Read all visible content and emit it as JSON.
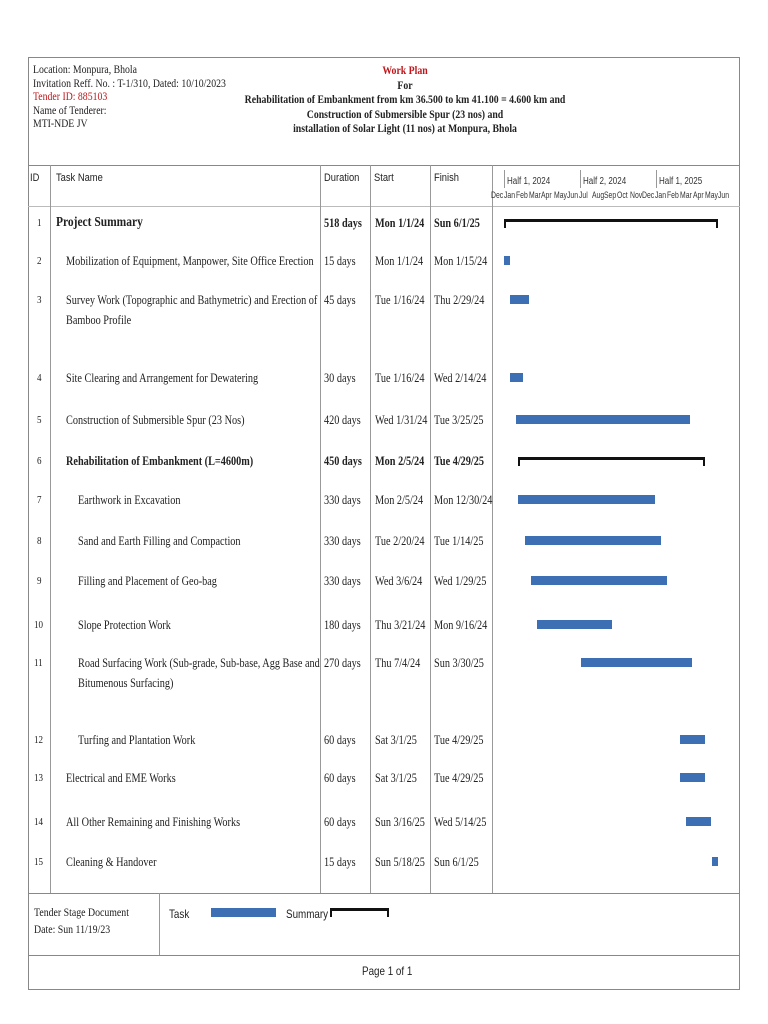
{
  "header": {
    "location": "Location: Monpura, Bhola",
    "invitation": "Invitation Reff. No. : T-1/310, Dated: 10/10/2023",
    "tender_id": "Tender ID: 885103",
    "tenderer_label": "Name of Tenderer:",
    "tenderer": "MTI-NDE JV",
    "title": "Work Plan",
    "for": "For",
    "desc1": "Rehabilitation of Embankment from km 36.500 to km 41.100 = 4.600 km and",
    "desc2": "Construction of Submersible Spur (23 nos) and",
    "desc3": "installation of Solar Light (11 nos) at Monpura, Bhola",
    "title_color": "#c0161b"
  },
  "columns": {
    "id": "ID",
    "task": "Task Name",
    "duration": "Duration",
    "start": "Start",
    "finish": "Finish"
  },
  "timescale": {
    "halves": [
      "Half 1, 2024",
      "Half 2, 2024",
      "Half 1, 2025"
    ],
    "months": [
      "Dec",
      "Jan",
      "Feb",
      "Mar",
      "Apr",
      "May",
      "Jun",
      "Jul",
      "Aug",
      "Sep",
      "Oct",
      "Nov",
      "Dec",
      "Jan",
      "Feb",
      "Mar",
      "Apr",
      "May",
      "Jun"
    ]
  },
  "tasks": [
    {
      "id": "1",
      "name": "Project Summary",
      "duration": "518 days",
      "start": "Mon 1/1/24",
      "finish": "Sun 6/1/25",
      "summary": true,
      "level": 0,
      "s": "2024-01-01",
      "f": "2025-06-01"
    },
    {
      "id": "2",
      "name": "Mobilization of Equipment, Manpower, Site Office Erection",
      "duration": "15 days",
      "start": "Mon 1/1/24",
      "finish": "Mon 1/15/24",
      "level": 1,
      "s": "2024-01-01",
      "f": "2024-01-15"
    },
    {
      "id": "3",
      "name": "Survey Work (Topographic and Bathymetric) and Erection of",
      "name2": "Bamboo Profile",
      "duration": "45 days",
      "start": "Tue 1/16/24",
      "finish": "Thu 2/29/24",
      "level": 1,
      "s": "2024-01-16",
      "f": "2024-02-29"
    },
    {
      "id": "4",
      "name": "Site Clearing and Arrangement for Dewatering",
      "duration": "30 days",
      "start": "Tue 1/16/24",
      "finish": "Wed 2/14/24",
      "level": 1,
      "s": "2024-01-16",
      "f": "2024-02-14"
    },
    {
      "id": "5",
      "name": "Construction of Submersible Spur (23 Nos)",
      "duration": "420 days",
      "start": "Wed 1/31/24",
      "finish": "Tue 3/25/25",
      "level": 1,
      "s": "2024-01-31",
      "f": "2025-03-25"
    },
    {
      "id": "6",
      "name": "Rehabilitation of Embankment (L=4600m)",
      "duration": "450 days",
      "start": "Mon 2/5/24",
      "finish": "Tue 4/29/25",
      "summary": true,
      "level": 1,
      "s": "2024-02-05",
      "f": "2025-04-29"
    },
    {
      "id": "7",
      "name": "Earthwork in Excavation",
      "duration": "330 days",
      "start": "Mon 2/5/24",
      "finish": "Mon 12/30/24",
      "level": 2,
      "s": "2024-02-05",
      "f": "2024-12-30"
    },
    {
      "id": "8",
      "name": "Sand and Earth Filling and Compaction",
      "duration": "330 days",
      "start": "Tue 2/20/24",
      "finish": "Tue 1/14/25",
      "level": 2,
      "s": "2024-02-20",
      "f": "2025-01-14"
    },
    {
      "id": "9",
      "name": "Filling and Placement of Geo-bag",
      "duration": "330 days",
      "start": "Wed 3/6/24",
      "finish": "Wed 1/29/25",
      "level": 2,
      "s": "2024-03-06",
      "f": "2025-01-29"
    },
    {
      "id": "10",
      "name": "Slope Protection Work",
      "duration": "180 days",
      "start": "Thu 3/21/24",
      "finish": "Mon 9/16/24",
      "level": 2,
      "s": "2024-03-21",
      "f": "2024-09-16"
    },
    {
      "id": "11",
      "name": "Road Surfacing Work (Sub-grade, Sub-base, Agg Base and",
      "name2": "Bitumenous Surfacing)",
      "duration": "270 days",
      "start": "Thu 7/4/24",
      "finish": "Sun 3/30/25",
      "level": 2,
      "s": "2024-07-04",
      "f": "2025-03-30"
    },
    {
      "id": "12",
      "name": "Turfing and Plantation Work",
      "duration": "60 days",
      "start": "Sat 3/1/25",
      "finish": "Tue 4/29/25",
      "level": 2,
      "s": "2025-03-01",
      "f": "2025-04-29"
    },
    {
      "id": "13",
      "name": "Electrical and EME Works",
      "duration": "60 days",
      "start": "Sat 3/1/25",
      "finish": "Tue 4/29/25",
      "level": 1,
      "s": "2025-03-01",
      "f": "2025-04-29"
    },
    {
      "id": "14",
      "name": "All Other Remaining and Finishing Works",
      "duration": "60 days",
      "start": "Sun 3/16/25",
      "finish": "Wed 5/14/25",
      "level": 1,
      "s": "2025-03-16",
      "f": "2025-05-14"
    },
    {
      "id": "15",
      "name": "Cleaning & Handover",
      "duration": "15 days",
      "start": "Sun 5/18/25",
      "finish": "Sun 6/1/25",
      "level": 1,
      "s": "2025-05-18",
      "f": "2025-06-01"
    }
  ],
  "footer": {
    "doc": "Tender Stage Document",
    "date": "Date: Sun 11/19/23",
    "legend_task": "Task",
    "legend_summary": "Summary",
    "page": "Page 1 of 1",
    "task_color": "#3c6fb4",
    "summary_color": "#111111"
  }
}
